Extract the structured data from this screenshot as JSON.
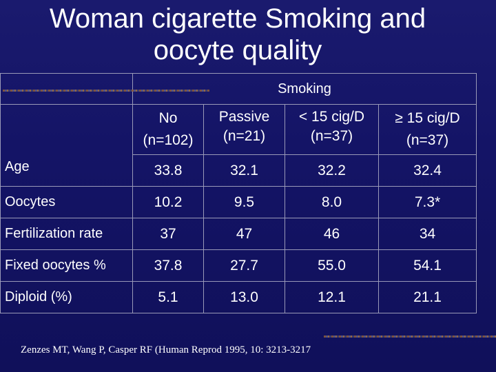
{
  "title_line1": "Woman cigarette Smoking and",
  "title_line2": "oocyte quality",
  "table": {
    "group_header": "Smoking",
    "columns": [
      {
        "line1": "No",
        "line2": "(n=102)"
      },
      {
        "line1": "Passive",
        "line2": "(n=21)"
      },
      {
        "line1": "< 15 cig/D",
        "line2": "(n=37)"
      },
      {
        "line1": "≥ 15 cig/D",
        "line2": "(n=37)"
      }
    ],
    "rows": [
      {
        "label": "Age",
        "values": [
          "33.8",
          "32.1",
          "32.2",
          "32.4"
        ]
      },
      {
        "label": "Oocytes",
        "values": [
          "10.2",
          "9.5",
          "8.0",
          "7.3*"
        ]
      },
      {
        "label": "Fertilization rate",
        "values": [
          "37",
          "47",
          "46",
          "34"
        ]
      },
      {
        "label": "Fixed oocytes %",
        "values": [
          "37.8",
          "27.7",
          "55.0",
          "54.1"
        ]
      },
      {
        "label": "Diploid (%)",
        "values": [
          "5.1",
          "13.0",
          "12.1",
          "21.1"
        ]
      }
    ]
  },
  "citation": "Zenzes MT, Wang P, Casper RF (Human Reprod 1995, 10: 3213-3217"
}
